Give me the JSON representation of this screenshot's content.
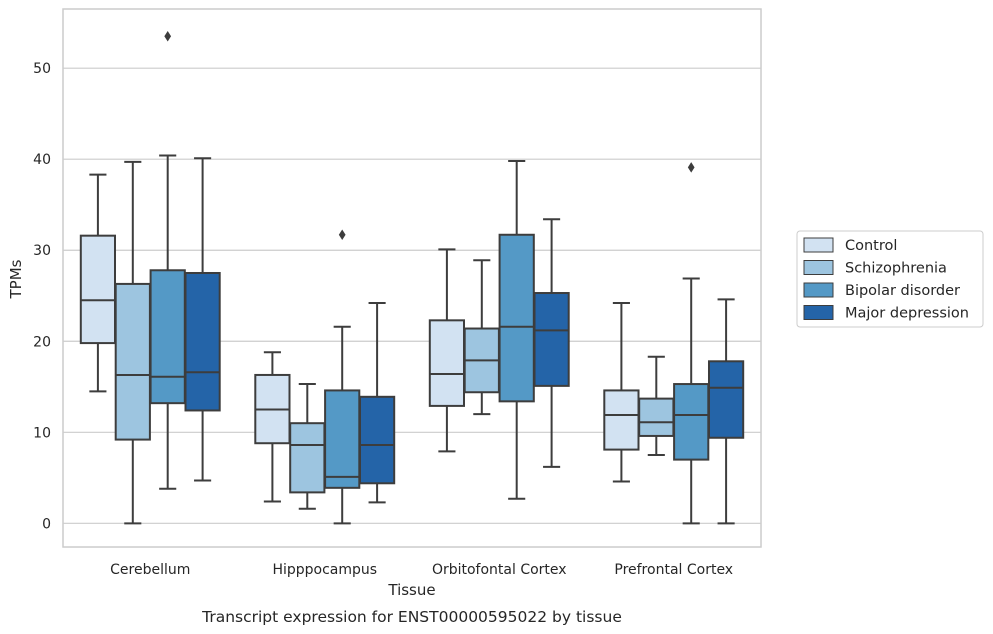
{
  "chart_data": {
    "type": "box",
    "caption": "Transcript expression for ENST00000595022 by tissue",
    "xlabel": "Tissue",
    "ylabel": "TPMs",
    "ylim": [
      -2.6,
      56.5
    ],
    "yticks": [
      0,
      10,
      20,
      30,
      40,
      50
    ],
    "grid": "horizontal",
    "legend_position": "right",
    "categories": [
      "Cerebellum",
      "Hipppocampus",
      "Orbitofontal Cortex",
      "Prefrontal Cortex"
    ],
    "series": [
      {
        "name": "Control",
        "color": "#d2e2f2",
        "boxes": [
          {
            "whislo": 14.5,
            "q1": 19.8,
            "med": 24.5,
            "q3": 31.6,
            "whishi": 38.3,
            "fliers": []
          },
          {
            "whislo": 2.4,
            "q1": 8.8,
            "med": 12.5,
            "q3": 16.3,
            "whishi": 18.8,
            "fliers": []
          },
          {
            "whislo": 7.9,
            "q1": 12.9,
            "med": 16.4,
            "q3": 22.3,
            "whishi": 30.1,
            "fliers": []
          },
          {
            "whislo": 4.6,
            "q1": 8.1,
            "med": 11.9,
            "q3": 14.6,
            "whishi": 24.2,
            "fliers": []
          }
        ]
      },
      {
        "name": "Schizophrenia",
        "color": "#9dc5e0",
        "boxes": [
          {
            "whislo": 0.0,
            "q1": 9.2,
            "med": 16.3,
            "q3": 26.3,
            "whishi": 39.7,
            "fliers": []
          },
          {
            "whislo": 1.6,
            "q1": 3.4,
            "med": 8.6,
            "q3": 11.0,
            "whishi": 15.3,
            "fliers": []
          },
          {
            "whislo": 12.0,
            "q1": 14.4,
            "med": 17.9,
            "q3": 21.4,
            "whishi": 28.9,
            "fliers": []
          },
          {
            "whislo": 7.5,
            "q1": 9.6,
            "med": 11.1,
            "q3": 13.7,
            "whishi": 18.3,
            "fliers": []
          }
        ]
      },
      {
        "name": "Bipolar disorder",
        "color": "#5499c6",
        "boxes": [
          {
            "whislo": 3.8,
            "q1": 13.2,
            "med": 16.1,
            "q3": 27.8,
            "whishi": 40.4,
            "fliers": [
              53.5
            ]
          },
          {
            "whislo": 0.0,
            "q1": 3.9,
            "med": 5.1,
            "q3": 14.6,
            "whishi": 21.6,
            "fliers": [
              31.7
            ]
          },
          {
            "whislo": 2.7,
            "q1": 13.4,
            "med": 21.6,
            "q3": 31.7,
            "whishi": 39.8,
            "fliers": []
          },
          {
            "whislo": 0.0,
            "q1": 7.0,
            "med": 11.9,
            "q3": 15.3,
            "whishi": 26.9,
            "fliers": [
              39.1
            ]
          }
        ]
      },
      {
        "name": "Major depression",
        "color": "#2464a8",
        "boxes": [
          {
            "whislo": 4.7,
            "q1": 12.4,
            "med": 16.6,
            "q3": 27.5,
            "whishi": 40.1,
            "fliers": []
          },
          {
            "whislo": 2.3,
            "q1": 4.4,
            "med": 8.6,
            "q3": 13.9,
            "whishi": 24.2,
            "fliers": []
          },
          {
            "whislo": 6.2,
            "q1": 15.1,
            "med": 21.2,
            "q3": 25.3,
            "whishi": 33.4,
            "fliers": []
          },
          {
            "whislo": 0.0,
            "q1": 9.4,
            "med": 14.9,
            "q3": 17.8,
            "whishi": 24.6,
            "fliers": []
          }
        ]
      }
    ]
  }
}
